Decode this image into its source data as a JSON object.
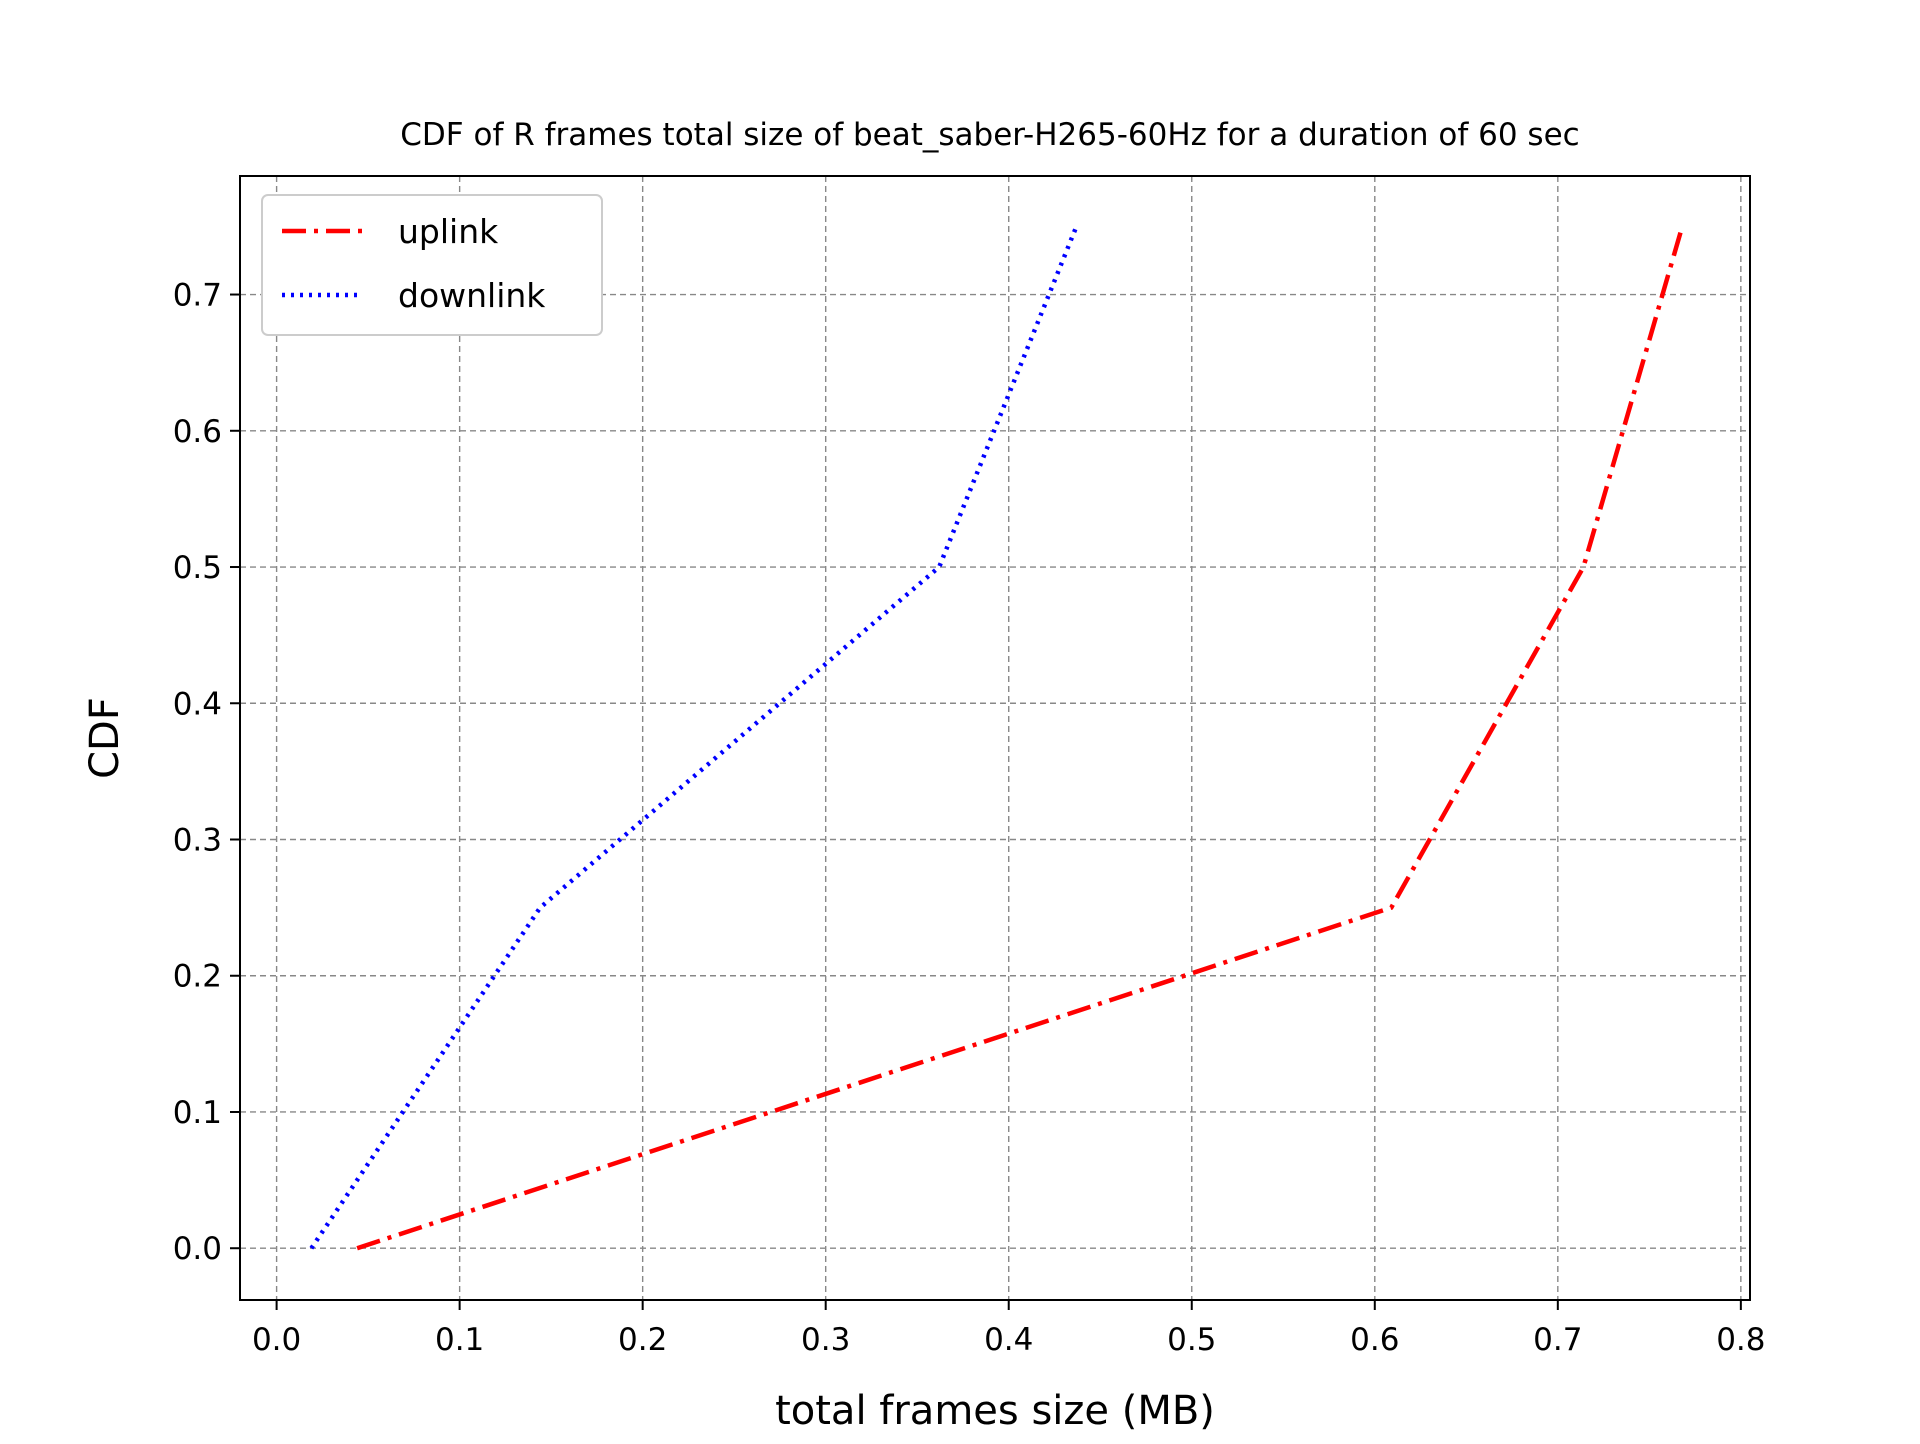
{
  "chart_data": {
    "type": "line",
    "title": "CDF of R frames total size of beat_saber-H265-60Hz for a duration of 60 sec",
    "xlabel": "total frames size (MB)",
    "ylabel": "CDF",
    "xlim": [
      -0.02,
      0.805
    ],
    "ylim": [
      -0.038,
      0.787
    ],
    "xticks": [
      0.0,
      0.1,
      0.2,
      0.3,
      0.4,
      0.5,
      0.6,
      0.7,
      0.8
    ],
    "xtick_labels": [
      "0.0",
      "0.1",
      "0.2",
      "0.3",
      "0.4",
      "0.5",
      "0.6",
      "0.7",
      "0.8"
    ],
    "yticks": [
      0.0,
      0.1,
      0.2,
      0.3,
      0.4,
      0.5,
      0.6,
      0.7
    ],
    "ytick_labels": [
      "0.0",
      "0.1",
      "0.2",
      "0.3",
      "0.4",
      "0.5",
      "0.6",
      "0.7"
    ],
    "grid": true,
    "legend_position": "upper-left",
    "series": [
      {
        "name": "uplink",
        "color": "#ff0000",
        "style": "dash-dot",
        "x": [
          0.044,
          0.609,
          0.714,
          0.768
        ],
        "y": [
          0.0,
          0.25,
          0.5,
          0.75
        ]
      },
      {
        "name": "downlink",
        "color": "#0000ff",
        "style": "dotted",
        "x": [
          0.019,
          0.144,
          0.362,
          0.437
        ],
        "y": [
          0.0,
          0.25,
          0.5,
          0.75
        ]
      }
    ]
  }
}
